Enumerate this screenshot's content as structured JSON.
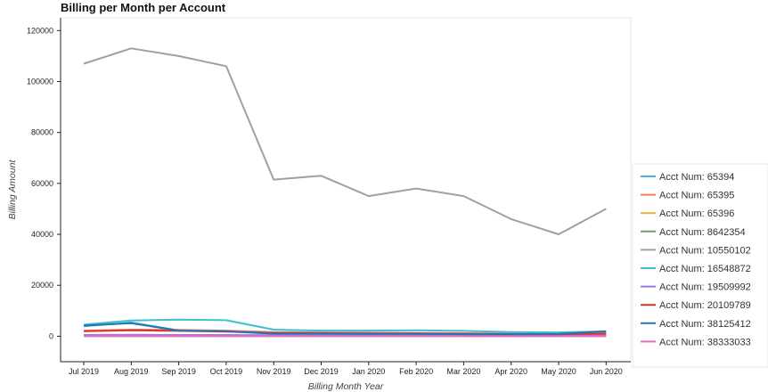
{
  "chart_data": {
    "type": "line",
    "title": "Billing per Month per Account",
    "xlabel": "Billing Month Year",
    "ylabel": "Billing Amount",
    "categories": [
      "Jul 2019",
      "Aug 2019",
      "Sep 2019",
      "Oct 2019",
      "Nov 2019",
      "Dec 2019",
      "Jan 2020",
      "Feb 2020",
      "Mar 2020",
      "Apr 2020",
      "May 2020",
      "Jun 2020"
    ],
    "ylim": [
      -10000,
      125000
    ],
    "yticks": [
      0,
      20000,
      40000,
      60000,
      80000,
      100000,
      120000
    ],
    "grid": false,
    "legend_position": "right",
    "series": [
      {
        "name": "Acct Num: 65394",
        "color": "#4daee5",
        "values": [
          3900,
          5400,
          2300,
          1900,
          900,
          800,
          700,
          700,
          600,
          500,
          500,
          700
        ]
      },
      {
        "name": "Acct Num: 65395",
        "color": "#f37d5c",
        "values": [
          2200,
          2600,
          2500,
          2200,
          1600,
          1500,
          1400,
          1300,
          1200,
          1100,
          1100,
          1300
        ]
      },
      {
        "name": "Acct Num: 65396",
        "color": "#e7b24b",
        "values": [
          300,
          400,
          300,
          300,
          200,
          200,
          200,
          200,
          200,
          200,
          200,
          200
        ]
      },
      {
        "name": "Acct Num: 8642354",
        "color": "#6aa463",
        "values": [
          100,
          100,
          100,
          100,
          100,
          100,
          100,
          100,
          100,
          100,
          100,
          100
        ]
      },
      {
        "name": "Acct Num: 10550102",
        "color": "#a0a0a0",
        "values": [
          107000,
          113000,
          110000,
          106000,
          61500,
          63000,
          55000,
          58000,
          55000,
          46000,
          40000,
          50000
        ]
      },
      {
        "name": "Acct Num: 16548872",
        "color": "#3dbfcf",
        "values": [
          4500,
          6200,
          6500,
          6300,
          2600,
          2200,
          2200,
          2300,
          2100,
          1600,
          1500,
          1900
        ]
      },
      {
        "name": "Acct Num: 19509992",
        "color": "#9b7dd6",
        "values": [
          500,
          600,
          500,
          500,
          400,
          400,
          400,
          400,
          400,
          300,
          300,
          400
        ]
      },
      {
        "name": "Acct Num: 20109789",
        "color": "#d9352e",
        "values": [
          2000,
          2300,
          2100,
          1800,
          1300,
          1200,
          1100,
          1100,
          900,
          800,
          800,
          1000
        ]
      },
      {
        "name": "Acct Num: 38125412",
        "color": "#2276b4",
        "values": [
          4200,
          5100,
          2200,
          2000,
          1000,
          1000,
          900,
          900,
          800,
          800,
          900,
          2000
        ]
      },
      {
        "name": "Acct Num: 38333033",
        "color": "#e56bbf",
        "values": [
          0,
          0,
          0,
          0,
          0,
          0,
          0,
          0,
          0,
          0,
          0,
          0
        ]
      }
    ]
  }
}
